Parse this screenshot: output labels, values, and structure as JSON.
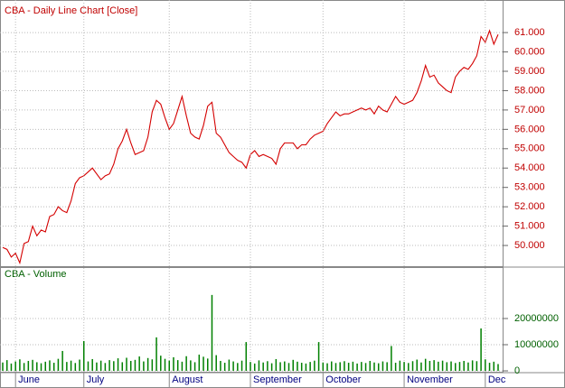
{
  "chart_data": [
    {
      "type": "line",
      "title": "CBA - Daily Line Chart [Close]",
      "color": "#d40000",
      "grid": true,
      "ylim": [
        48.93,
        62.59
      ],
      "yticks": [
        {
          "value": 50,
          "label": "50.000"
        },
        {
          "value": 51,
          "label": "51.000"
        },
        {
          "value": 52,
          "label": "52.000"
        },
        {
          "value": 53,
          "label": "53.000"
        },
        {
          "value": 54,
          "label": "54.000"
        },
        {
          "value": 55,
          "label": "55.000"
        },
        {
          "value": 56,
          "label": "56.000"
        },
        {
          "value": 57,
          "label": "57.000"
        },
        {
          "value": 58,
          "label": "58.000"
        },
        {
          "value": 59,
          "label": "59.000"
        },
        {
          "value": 60,
          "label": "60.000"
        },
        {
          "value": 61,
          "label": "61.000"
        }
      ],
      "values": [
        49.9,
        49.8,
        49.4,
        49.6,
        49.1,
        50.1,
        50.2,
        51.0,
        50.5,
        50.8,
        50.7,
        51.5,
        51.6,
        52.0,
        51.8,
        51.7,
        52.3,
        53.2,
        53.5,
        53.6,
        53.8,
        54.0,
        53.7,
        53.4,
        53.6,
        53.7,
        54.2,
        55.0,
        55.4,
        56.0,
        55.3,
        54.7,
        54.8,
        54.9,
        55.6,
        56.9,
        57.5,
        57.3,
        56.6,
        56.0,
        56.3,
        57.0,
        57.7,
        56.7,
        55.8,
        55.6,
        55.5,
        56.2,
        57.2,
        57.4,
        55.8,
        55.6,
        55.2,
        54.8,
        54.6,
        54.4,
        54.3,
        54.0,
        54.7,
        54.9,
        54.6,
        54.7,
        54.6,
        54.5,
        54.2,
        55.0,
        55.3,
        55.3,
        55.3,
        55.0,
        55.2,
        55.2,
        55.5,
        55.7,
        55.8,
        55.9,
        56.3,
        56.6,
        56.9,
        56.7,
        56.8,
        56.8,
        56.9,
        57.0,
        57.1,
        57.0,
        57.1,
        56.8,
        57.2,
        57.0,
        56.9,
        57.3,
        57.7,
        57.4,
        57.3,
        57.4,
        57.5,
        57.9,
        58.5,
        59.3,
        58.7,
        58.8,
        58.4,
        58.2,
        58.0,
        57.9,
        58.7,
        59.0,
        59.2,
        59.1,
        59.4,
        59.8,
        60.8,
        60.5,
        61.1,
        60.4,
        60.9
      ]
    },
    {
      "type": "bar",
      "title": "CBA - Volume",
      "color": "#008000",
      "grid": true,
      "ylim": [
        0,
        39300000
      ],
      "yticks": [
        0,
        10000000,
        20000000
      ],
      "categories": [
        null,
        null,
        null,
        "June",
        null,
        null,
        null,
        null,
        null,
        null,
        null,
        null,
        null,
        null,
        null,
        null,
        null,
        null,
        null,
        "July",
        null,
        null,
        null,
        null,
        null,
        null,
        null,
        null,
        null,
        null,
        null,
        null,
        null,
        null,
        null,
        null,
        null,
        null,
        null,
        "August",
        null,
        null,
        null,
        null,
        null,
        null,
        null,
        null,
        null,
        null,
        null,
        null,
        null,
        null,
        null,
        null,
        null,
        null,
        "September",
        null,
        null,
        null,
        null,
        null,
        null,
        null,
        null,
        null,
        null,
        null,
        null,
        null,
        null,
        null,
        null,
        "October",
        null,
        null,
        null,
        null,
        null,
        null,
        null,
        null,
        null,
        null,
        null,
        null,
        null,
        null,
        null,
        null,
        null,
        null,
        "November",
        null,
        null,
        null,
        null,
        null,
        null,
        null,
        null,
        null,
        null,
        null,
        null,
        null,
        null,
        null,
        null,
        null,
        null,
        "Dec",
        null,
        null,
        null
      ],
      "values": [
        3200000,
        4100000,
        2800000,
        3600000,
        4400000,
        3000000,
        3800000,
        4200000,
        3300000,
        2900000,
        3500000,
        4000000,
        3100000,
        4600000,
        7600000,
        3400000,
        3900000,
        3000000,
        4300000,
        11400000,
        3600000,
        4500000,
        3200000,
        3900000,
        3000000,
        4100000,
        3700000,
        4800000,
        3300000,
        5000000,
        3800000,
        4200000,
        5500000,
        3600000,
        4900000,
        4400000,
        12800000,
        5800000,
        4600000,
        3900000,
        5200000,
        4100000,
        3500000,
        5600000,
        4000000,
        3300000,
        6200000,
        5400000,
        4700000,
        29000000,
        6000000,
        3800000,
        3100000,
        4300000,
        3600000,
        3000000,
        3900000,
        11000000,
        3400000,
        2800000,
        4000000,
        3200000,
        3700000,
        2900000,
        4500000,
        3300000,
        3600000,
        3000000,
        4200000,
        3500000,
        3100000,
        2800000,
        3400000,
        3900000,
        11000000,
        3200000,
        2900000,
        3600000,
        3000000,
        3300000,
        3700000,
        3100000,
        3500000,
        2800000,
        3400000,
        3000000,
        3800000,
        3200000,
        2900000,
        3600000,
        3300000,
        9500000,
        3100000,
        3900000,
        3400000,
        3000000,
        3700000,
        4300000,
        3200000,
        4600000,
        3800000,
        4100000,
        3500000,
        3900000,
        3300000,
        3600000,
        3000000,
        3400000,
        3800000,
        3200000,
        4000000,
        3700000,
        16200000,
        4400000,
        3100000,
        3500000,
        2600000
      ]
    }
  ]
}
